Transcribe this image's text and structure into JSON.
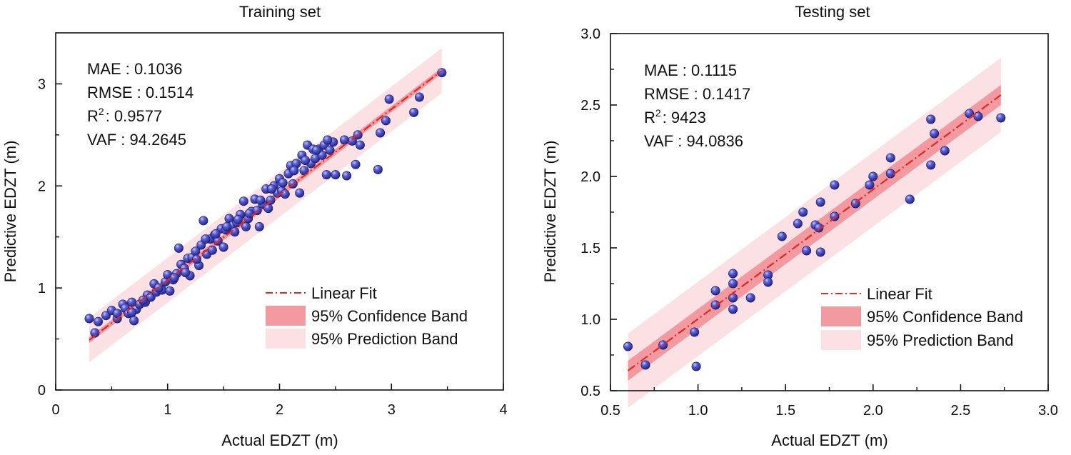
{
  "chart_data": [
    {
      "type": "scatter",
      "title": "Training set",
      "xlabel": "Actual EDZT (m)",
      "ylabel": "Predictive EDZT (m)",
      "xlim": [
        0,
        4
      ],
      "ylim": [
        0,
        3.5
      ],
      "xticks": [
        0,
        1,
        2,
        3,
        4
      ],
      "yticks": [
        0,
        1,
        2,
        3
      ],
      "xtick_labels": [
        "0",
        "1",
        "2",
        "3",
        "4"
      ],
      "ytick_labels": [
        "0",
        "1",
        "2",
        "3"
      ],
      "stats": {
        "mae_label": "MAE : 0.1036",
        "rmse_label": "RMSE : 0.1514",
        "r2_prefix": "R",
        "r2_sup": "2",
        "r2_value": ": 0.9577",
        "vaf_label": "VAF : 94.2645"
      },
      "legend": {
        "linear_fit": "Linear Fit",
        "confidence": "95% Confidence Band",
        "prediction": "95% Prediction Band"
      },
      "fit": {
        "x_start": 0.3,
        "y_start": 0.49,
        "x_end": 3.45,
        "y_end": 3.13
      },
      "confidence_halfwidth": 0.03,
      "prediction_halfwidth": 0.22,
      "points": [
        [
          0.3,
          0.7
        ],
        [
          0.35,
          0.56
        ],
        [
          0.38,
          0.67
        ],
        [
          0.45,
          0.73
        ],
        [
          0.5,
          0.78
        ],
        [
          0.55,
          0.7
        ],
        [
          0.6,
          0.84
        ],
        [
          0.62,
          0.8
        ],
        [
          0.65,
          0.75
        ],
        [
          0.68,
          0.86
        ],
        [
          0.7,
          0.68
        ],
        [
          0.72,
          0.79
        ],
        [
          0.75,
          0.84
        ],
        [
          0.8,
          0.86
        ],
        [
          0.82,
          0.93
        ],
        [
          0.85,
          0.91
        ],
        [
          0.88,
          1.04
        ],
        [
          0.9,
          0.96
        ],
        [
          0.95,
          0.98
        ],
        [
          0.98,
          1.06
        ],
        [
          1.0,
          1.13
        ],
        [
          1.02,
          0.97
        ],
        [
          1.05,
          1.08
        ],
        [
          1.08,
          1.14
        ],
        [
          1.1,
          1.39
        ],
        [
          1.12,
          1.23
        ],
        [
          1.15,
          1.19
        ],
        [
          1.18,
          1.29
        ],
        [
          1.2,
          1.12
        ],
        [
          1.22,
          1.3
        ],
        [
          1.25,
          1.36
        ],
        [
          1.28,
          1.22
        ],
        [
          1.3,
          1.42
        ],
        [
          1.32,
          1.66
        ],
        [
          1.35,
          1.33
        ],
        [
          1.38,
          1.48
        ],
        [
          1.4,
          1.37
        ],
        [
          1.42,
          1.52
        ],
        [
          1.45,
          1.46
        ],
        [
          1.48,
          1.58
        ],
        [
          1.5,
          1.4
        ],
        [
          1.52,
          1.57
        ],
        [
          1.55,
          1.68
        ],
        [
          1.58,
          1.61
        ],
        [
          1.6,
          1.55
        ],
        [
          1.62,
          1.64
        ],
        [
          1.65,
          1.72
        ],
        [
          1.68,
          1.85
        ],
        [
          1.7,
          1.6
        ],
        [
          1.72,
          1.68
        ],
        [
          1.75,
          1.75
        ],
        [
          1.78,
          1.87
        ],
        [
          1.8,
          1.76
        ],
        [
          1.82,
          1.6
        ],
        [
          1.85,
          1.82
        ],
        [
          1.88,
          1.97
        ],
        [
          1.9,
          1.78
        ],
        [
          1.92,
          1.86
        ],
        [
          1.95,
          2.0
        ],
        [
          1.98,
          1.93
        ],
        [
          2.0,
          2.07
        ],
        [
          2.02,
          1.95
        ],
        [
          2.05,
          1.92
        ],
        [
          2.08,
          2.12
        ],
        [
          2.1,
          2.2
        ],
        [
          2.12,
          2.02
        ],
        [
          2.15,
          2.22
        ],
        [
          2.18,
          1.93
        ],
        [
          2.2,
          2.3
        ],
        [
          2.22,
          2.15
        ],
        [
          2.25,
          2.4
        ],
        [
          2.28,
          2.22
        ],
        [
          2.3,
          2.36
        ],
        [
          2.32,
          2.27
        ],
        [
          2.35,
          2.36
        ],
        [
          2.38,
          2.3
        ],
        [
          2.4,
          2.4
        ],
        [
          2.42,
          2.11
        ],
        [
          2.45,
          2.35
        ],
        [
          2.48,
          2.43
        ],
        [
          2.5,
          2.11
        ],
        [
          2.6,
          2.1
        ],
        [
          2.65,
          2.44
        ],
        [
          2.68,
          2.21
        ],
        [
          2.72,
          2.4
        ],
        [
          2.88,
          2.16
        ],
        [
          2.9,
          2.52
        ],
        [
          2.95,
          2.64
        ],
        [
          2.98,
          2.85
        ],
        [
          3.2,
          2.72
        ],
        [
          3.25,
          2.87
        ],
        [
          3.45,
          3.11
        ],
        [
          0.55,
          0.75
        ],
        [
          0.68,
          0.76
        ],
        [
          0.78,
          0.88
        ],
        [
          0.92,
          1.0
        ],
        [
          1.06,
          1.1
        ],
        [
          1.16,
          1.15
        ],
        [
          1.26,
          1.28
        ],
        [
          1.34,
          1.48
        ],
        [
          1.43,
          1.53
        ],
        [
          1.53,
          1.6
        ],
        [
          1.63,
          1.67
        ],
        [
          1.73,
          1.73
        ],
        [
          1.83,
          1.86
        ],
        [
          1.93,
          1.97
        ],
        [
          2.03,
          2.03
        ],
        [
          2.13,
          2.15
        ],
        [
          2.23,
          2.25
        ],
        [
          2.33,
          2.35
        ],
        [
          2.43,
          2.45
        ],
        [
          2.58,
          2.45
        ],
        [
          2.7,
          2.5
        ]
      ]
    },
    {
      "type": "scatter",
      "title": "Testing set",
      "xlabel": "Actual EDZT (m)",
      "ylabel": "Predictive EDZT (m)",
      "xlim": [
        0.5,
        3.0
      ],
      "ylim": [
        0.5,
        3.0
      ],
      "xticks": [
        0.5,
        1.0,
        1.5,
        2.0,
        2.5,
        3.0
      ],
      "yticks": [
        0.5,
        1.0,
        1.5,
        2.0,
        2.5,
        3.0
      ],
      "xtick_labels": [
        "0.5",
        "1.0",
        "1.5",
        "2.0",
        "2.5",
        "3.0"
      ],
      "ytick_labels": [
        "0.5",
        "1.0",
        "1.5",
        "2.0",
        "2.5",
        "3.0"
      ],
      "stats": {
        "mae_label": "MAE : 0.1115",
        "rmse_label": "RMSE : 0.1417",
        "r2_prefix": "R",
        "r2_sup": "2",
        "r2_value": ": 9423",
        "vaf_label": "VAF : 94.0836"
      },
      "legend": {
        "linear_fit": "Linear Fit",
        "confidence": "95% Confidence Band",
        "prediction": "95% Prediction Band"
      },
      "fit": {
        "x_start": 0.6,
        "y_start": 0.64,
        "x_end": 2.73,
        "y_end": 2.57
      },
      "confidence_halfwidth": 0.07,
      "prediction_halfwidth": 0.26,
      "points": [
        [
          0.6,
          0.81
        ],
        [
          0.7,
          0.68
        ],
        [
          0.8,
          0.82
        ],
        [
          0.98,
          0.91
        ],
        [
          0.99,
          0.67
        ],
        [
          1.1,
          1.2
        ],
        [
          1.1,
          1.1
        ],
        [
          1.2,
          1.32
        ],
        [
          1.2,
          1.25
        ],
        [
          1.2,
          1.15
        ],
        [
          1.2,
          1.07
        ],
        [
          1.3,
          1.15
        ],
        [
          1.4,
          1.31
        ],
        [
          1.4,
          1.26
        ],
        [
          1.48,
          1.58
        ],
        [
          1.57,
          1.67
        ],
        [
          1.6,
          1.75
        ],
        [
          1.62,
          1.48
        ],
        [
          1.67,
          1.66
        ],
        [
          1.69,
          1.64
        ],
        [
          1.7,
          1.82
        ],
        [
          1.7,
          1.47
        ],
        [
          1.78,
          1.72
        ],
        [
          1.78,
          1.94
        ],
        [
          1.9,
          1.81
        ],
        [
          1.98,
          1.94
        ],
        [
          2.0,
          2.0
        ],
        [
          2.1,
          2.13
        ],
        [
          2.1,
          2.02
        ],
        [
          2.21,
          1.84
        ],
        [
          2.33,
          2.4
        ],
        [
          2.33,
          2.08
        ],
        [
          2.35,
          2.3
        ],
        [
          2.41,
          2.18
        ],
        [
          2.55,
          2.44
        ],
        [
          2.6,
          2.42
        ],
        [
          2.73,
          2.41
        ]
      ]
    }
  ]
}
